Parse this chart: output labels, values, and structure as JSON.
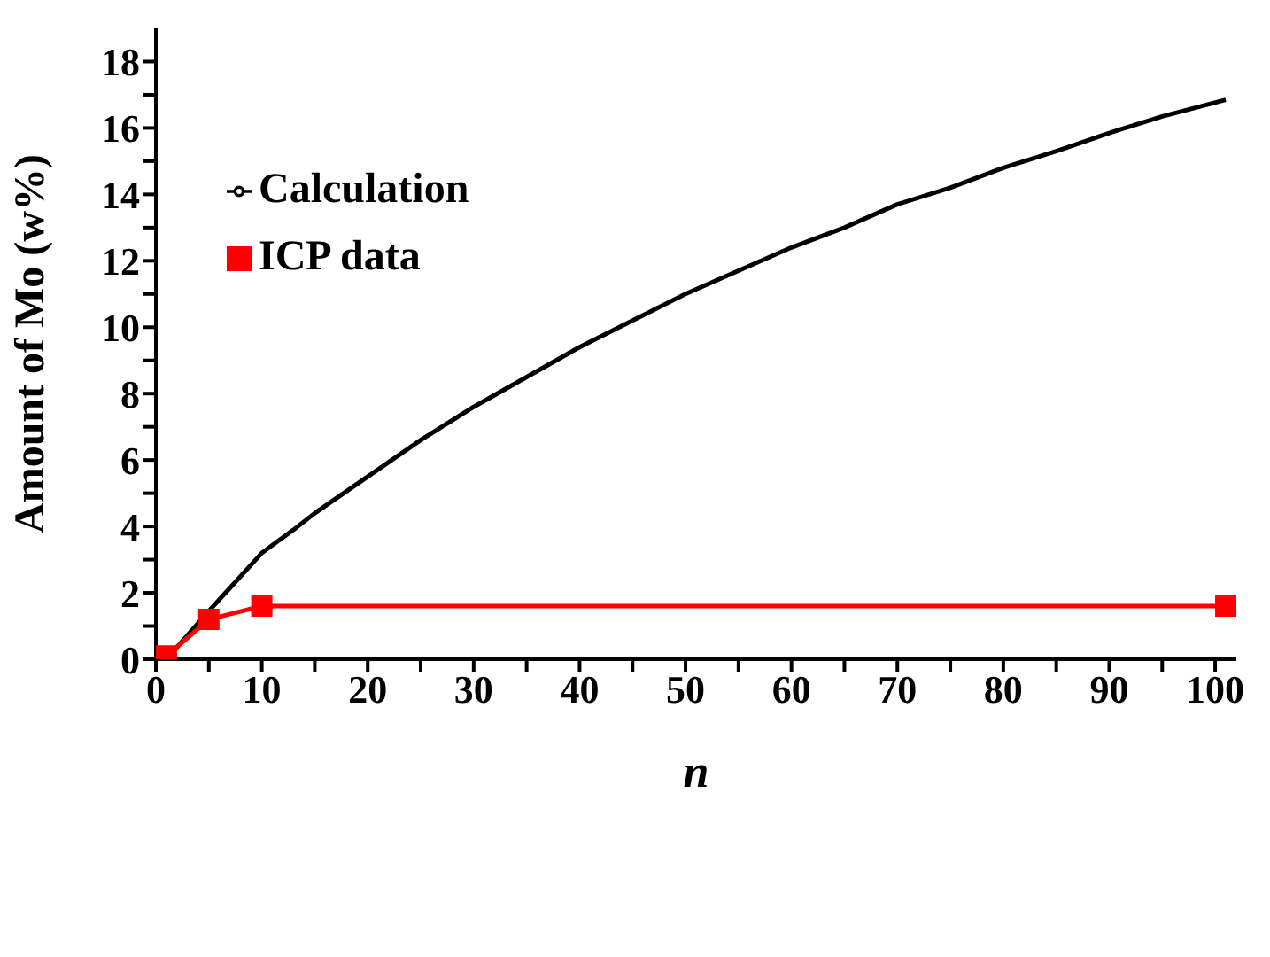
{
  "chart_data": {
    "type": "line",
    "xlabel": "n",
    "ylabel": "Amount of Mo (w%)",
    "xlim": [
      0,
      102
    ],
    "ylim": [
      0,
      19
    ],
    "xticks": [
      0,
      {
        "value": 5,
        "label": null
      },
      10,
      {
        "value": 15,
        "label": null
      },
      20,
      {
        "value": 25,
        "label": null
      },
      30,
      {
        "value": 35,
        "label": null
      },
      40,
      {
        "value": 45,
        "label": null
      },
      50,
      {
        "value": 55,
        "label": null
      },
      60,
      {
        "value": 65,
        "label": null
      },
      70,
      {
        "value": 75,
        "label": null
      },
      80,
      {
        "value": 85,
        "label": null
      },
      90,
      {
        "value": 95,
        "label": null
      },
      100
    ],
    "yticks": [
      0,
      {
        "value": 1,
        "label": null
      },
      2,
      {
        "value": 3,
        "label": null
      },
      4,
      {
        "value": 5,
        "label": null
      },
      6,
      {
        "value": 7,
        "label": null
      },
      8,
      {
        "value": 9,
        "label": null
      },
      10,
      {
        "value": 11,
        "label": null
      },
      12,
      {
        "value": 13,
        "label": null
      },
      14,
      {
        "value": 15,
        "label": null
      },
      16,
      {
        "value": 17,
        "label": null
      },
      18
    ],
    "grid": false,
    "legend": "top left",
    "series": [
      {
        "name": "Calculation",
        "color": "#000000",
        "marker": "none",
        "x": [
          1,
          5,
          10,
          13,
          15,
          20,
          25,
          30,
          35,
          40,
          45,
          50,
          55,
          60,
          65,
          70,
          75,
          80,
          85,
          90,
          95,
          101
        ],
        "values": [
          0,
          1.45,
          3.2,
          3.9,
          4.4,
          5.5,
          6.6,
          7.6,
          8.5,
          9.4,
          10.2,
          11.0,
          11.7,
          12.4,
          13.0,
          13.7,
          14.2,
          14.8,
          15.3,
          15.85,
          16.35,
          16.85
        ]
      },
      {
        "name": "ICP data",
        "color": "#ff0000",
        "marker": "square",
        "x": [
          1,
          5,
          10,
          101
        ],
        "values": [
          0.1,
          1.2,
          1.6,
          1.6
        ]
      }
    ]
  }
}
